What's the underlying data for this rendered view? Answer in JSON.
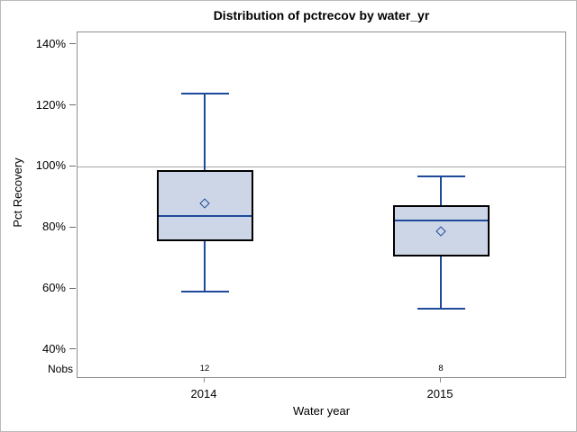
{
  "figure": {
    "title": "Distribution of pctrecov by water_yr"
  },
  "chart_data": {
    "type": "boxplot",
    "title": "Distribution of pctrecov by water_yr",
    "xlabel": "Water year",
    "ylabel": "Pct Recovery",
    "nobs_label": "Nobs",
    "categories": [
      "2014",
      "2015"
    ],
    "yticks": [
      40,
      60,
      80,
      100,
      120,
      140
    ],
    "ytick_labels": [
      "40%",
      "60%",
      "80%",
      "100%",
      "120%",
      "140%"
    ],
    "ylim": [
      30.5,
      144.1
    ],
    "reference_line": 100,
    "grid": false,
    "legend": "none",
    "series": [
      {
        "category": "2014",
        "nobs": "12",
        "whisker_low": 59,
        "q1": 75.5,
        "median": 84,
        "q3": 99,
        "whisker_high": 124,
        "mean": 88
      },
      {
        "category": "2015",
        "nobs": "8",
        "whisker_low": 53.5,
        "q1": 70.5,
        "median": 82.5,
        "q3": 87.5,
        "whisker_high": 97,
        "mean": 79
      }
    ],
    "colors": {
      "box_fill": "#ccd6e6",
      "box_border": "#000000",
      "line": "#1f4a9c",
      "reference_line": "#a6a6a6",
      "axis": "#8f8f8f",
      "text": "#000000"
    }
  }
}
